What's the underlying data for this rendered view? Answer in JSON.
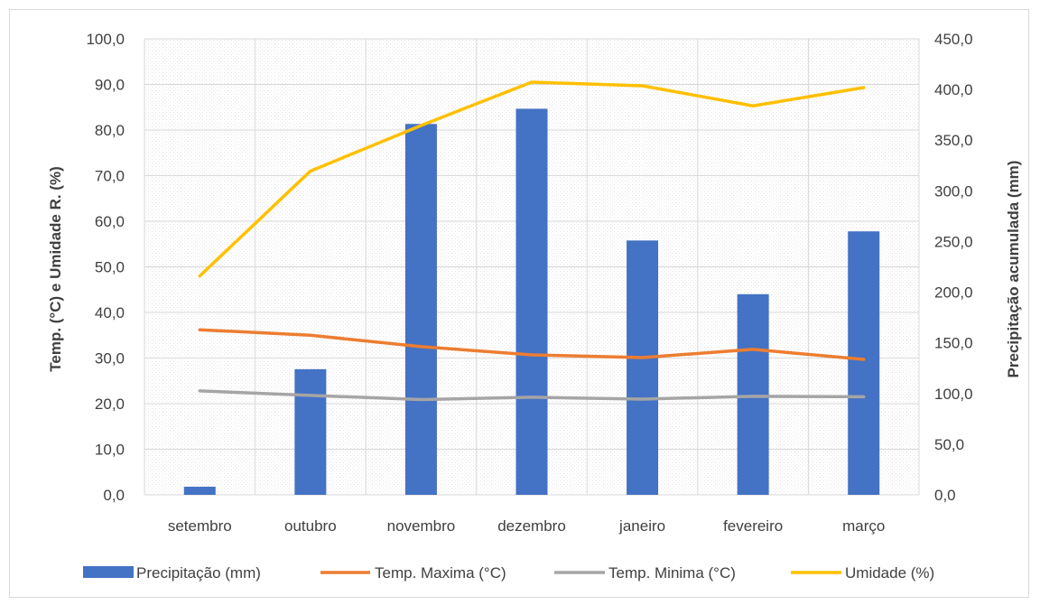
{
  "chart_data": {
    "type": "bar",
    "categories": [
      "setembro",
      "outubro",
      "novembro",
      "dezembro",
      "janeiro",
      "fevereiro",
      "março"
    ],
    "y_left": {
      "label": "Temp. (°C) e Umidade R. (%)",
      "range": [
        0,
        100
      ],
      "ticks": [
        "0,0",
        "10,0",
        "20,0",
        "30,0",
        "40,0",
        "50,0",
        "60,0",
        "70,0",
        "80,0",
        "90,0",
        "100,0"
      ]
    },
    "y_right": {
      "label": "Precipitação acumulada (mm)",
      "range": [
        0,
        450
      ],
      "ticks": [
        "0,0",
        "50,0",
        "100,0",
        "150,0",
        "200,0",
        "250,0",
        "300,0",
        "350,0",
        "400,0",
        "450,0"
      ]
    },
    "series": [
      {
        "name": "Precipitação (mm)",
        "type": "bar",
        "axis": "right",
        "color": "#4472c4",
        "values": [
          8,
          124,
          366,
          381,
          251,
          198,
          260
        ]
      },
      {
        "name": "Temp. Maxima (°C)",
        "type": "line",
        "axis": "left",
        "color": "#ed7d31",
        "values": [
          36.2,
          35.0,
          32.5,
          30.7,
          30.1,
          31.9,
          29.7
        ]
      },
      {
        "name": "Temp. Minima (°C)",
        "type": "line",
        "axis": "left",
        "color": "#a5a5a5",
        "values": [
          22.8,
          21.8,
          20.9,
          21.4,
          21.0,
          21.6,
          21.5
        ]
      },
      {
        "name": "Umidade (%)",
        "type": "line",
        "axis": "left",
        "color": "#ffc000",
        "values": [
          48.0,
          71.0,
          81.0,
          90.5,
          89.7,
          85.3,
          89.3
        ]
      }
    ],
    "grid": true,
    "legend_position": "bottom"
  }
}
